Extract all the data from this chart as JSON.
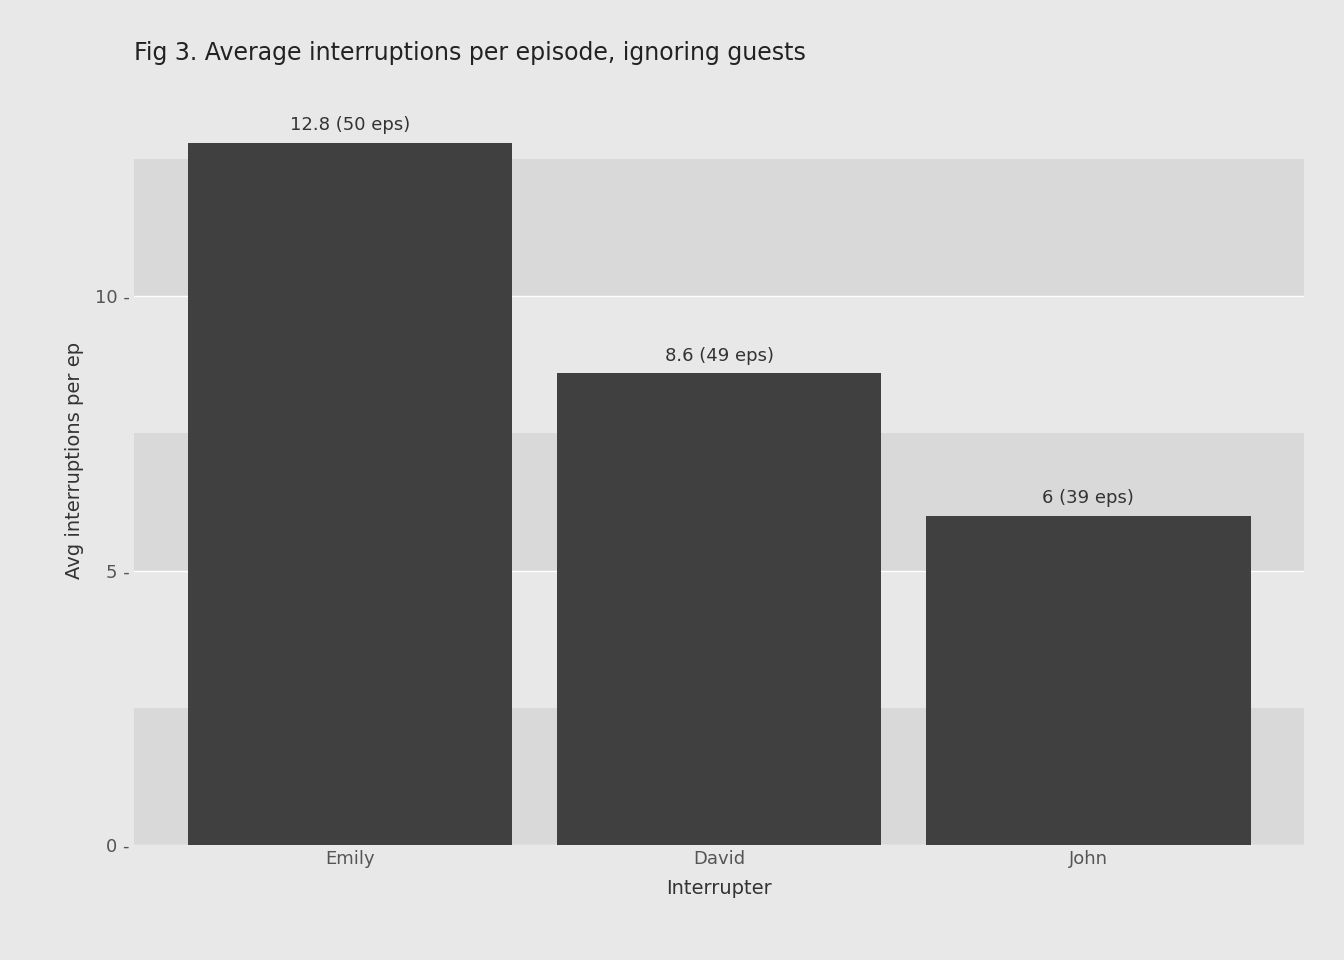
{
  "categories": [
    "Emily",
    "David",
    "John"
  ],
  "values": [
    12.8,
    8.6,
    6.0
  ],
  "labels": [
    "12.8 (50 eps)",
    "8.6 (49 eps)",
    "6 (39 eps)"
  ],
  "bar_color": "#404040",
  "title": "Fig 3. Average interruptions per episode, ignoring guests",
  "xlabel": "Interrupter",
  "ylabel": "Avg interruptions per ep",
  "ylim": [
    0,
    14
  ],
  "yticks": [
    0,
    5,
    10
  ],
  "background_color": "#e8e8e8",
  "plot_background_color": "#e8e8e8",
  "panel_bg_dark": "#d9d9d9",
  "panel_bg_light": "#e8e8e8",
  "grid_color": "#ffffff",
  "title_fontsize": 17,
  "axis_label_fontsize": 14,
  "tick_label_fontsize": 13,
  "bar_label_fontsize": 13,
  "bar_width": 0.88
}
